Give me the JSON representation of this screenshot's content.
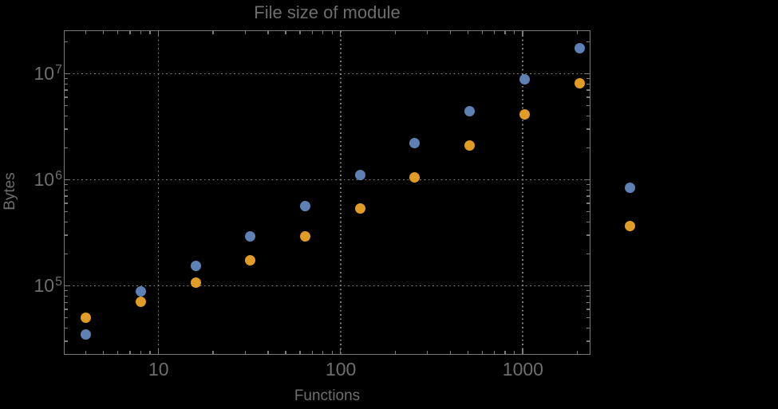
{
  "window": {
    "background": "#000000"
  },
  "chart_data": {
    "type": "scatter",
    "title": "File size of module",
    "xlabel": "Functions",
    "ylabel": "Bytes",
    "x_scale": "log",
    "y_scale": "log",
    "grid": "dotted major gridlines on",
    "legend": "none",
    "axes": {
      "xlim": [
        3.06,
        2333
      ],
      "ylim": [
        22800,
        25200000
      ],
      "x_major_ticks": [
        10,
        100,
        1000
      ],
      "x_tick_labels": [
        "10",
        "100",
        "1000"
      ],
      "y_major_ticks": [
        100000,
        1000000,
        10000000
      ],
      "y_tick_labels": [
        {
          "base": "10",
          "exp": "5"
        },
        {
          "base": "10",
          "exp": "6"
        },
        {
          "base": "10",
          "exp": "7"
        }
      ]
    },
    "x": [
      4,
      8,
      16,
      32,
      64,
      128,
      256,
      512,
      1024,
      2048,
      3900
    ],
    "series": [
      {
        "name": "series-1-blue",
        "color": "#5E81B5",
        "values": [
          35000,
          88000,
          155000,
          295000,
          560000,
          1110000,
          2220000,
          4450000,
          8900000,
          17500000,
          840000
        ]
      },
      {
        "name": "series-2-orange",
        "color": "#E09C24",
        "values": [
          50000,
          70500,
          108000,
          173000,
          295000,
          540000,
          1050000,
          2100000,
          4150000,
          8050000,
          368000
        ]
      }
    ],
    "colors": {
      "frame": "#7a7a7a",
      "grid": "#7e7e7e",
      "text": "#6e6e6e"
    }
  }
}
